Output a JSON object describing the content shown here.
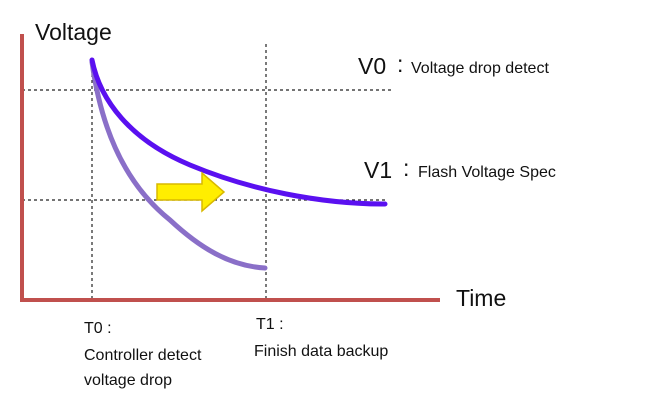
{
  "y_axis_label": "Voltage",
  "x_axis_label": "Time",
  "levels": [
    {
      "name": "V0",
      "separator": ":",
      "label": "Voltage drop detect"
    },
    {
      "name": "V1",
      "separator": ":",
      "label": "Flash Voltage Spec"
    }
  ],
  "times": [
    {
      "name": "T0 :",
      "lines": [
        "Controller detect",
        "voltage drop"
      ]
    },
    {
      "name": "T1 :",
      "lines": [
        "Finish data backup"
      ]
    }
  ]
}
